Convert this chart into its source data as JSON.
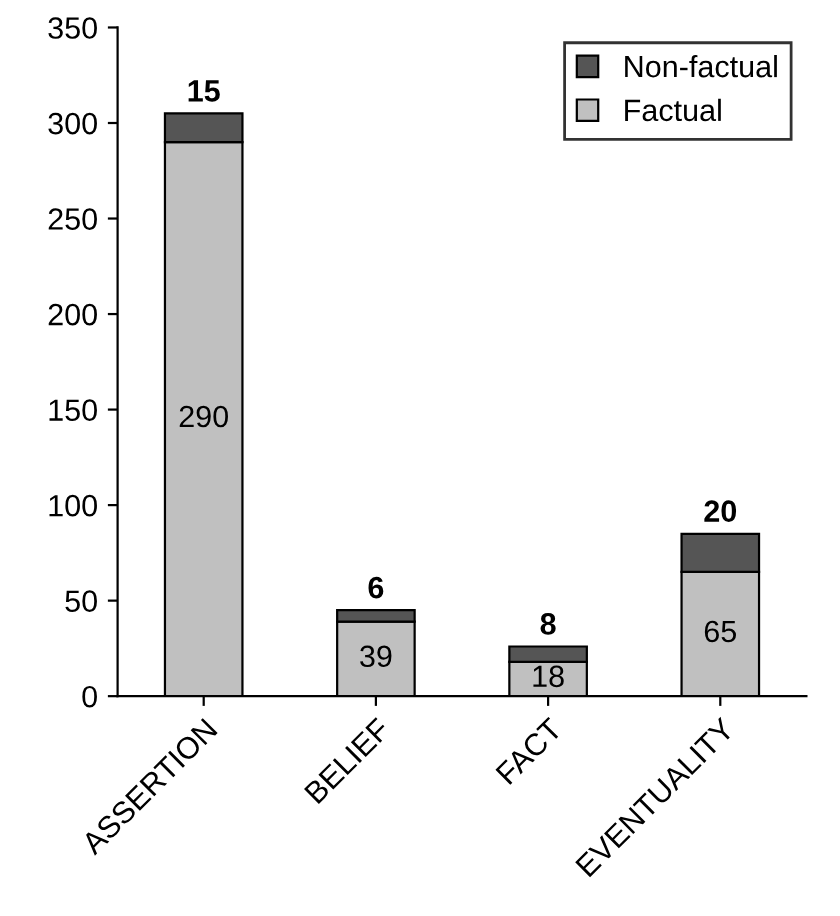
{
  "chart_data": {
    "type": "bar",
    "stacked": true,
    "categories": [
      "ASSERTION",
      "BELIEF",
      "FACT",
      "EVENTUALITY"
    ],
    "series": [
      {
        "name": "Factual",
        "color": "#c0c0c0",
        "values": [
          290,
          39,
          18,
          65
        ]
      },
      {
        "name": "Non-factual",
        "color": "#555555",
        "values": [
          15,
          6,
          8,
          20
        ]
      }
    ],
    "ylim": [
      0,
      350
    ],
    "yticks": [
      0,
      50,
      100,
      150,
      200,
      250,
      300,
      350
    ],
    "data_labels": true,
    "legend": "top right",
    "grid": false
  }
}
